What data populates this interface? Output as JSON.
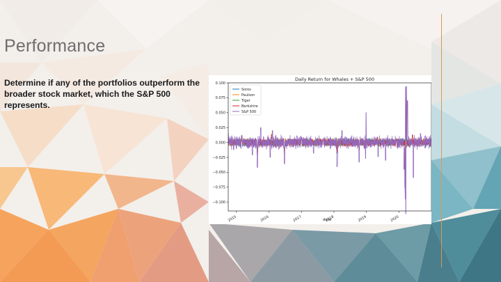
{
  "slide": {
    "title": "Performance",
    "body": "Determine if any of the portfolios outperform the broader stock market, which the S&P 500 represents."
  },
  "chart_data": {
    "type": "line",
    "title": "Daily Return for Whales + S&P 500",
    "xlabel": "date",
    "ylabel": "",
    "x_range": [
      "2014-10-01",
      "2020-12-31"
    ],
    "ylim": [
      -0.115,
      0.1
    ],
    "y_ticks": [
      0.1,
      0.075,
      0.05,
      0.025,
      0.0,
      -0.025,
      -0.05,
      -0.075,
      -0.1
    ],
    "y_tick_labels": [
      "0.100",
      "0.075",
      "0.050",
      "0.025",
      "0.000",
      "−0.025",
      "−0.050",
      "−0.075",
      "−0.100"
    ],
    "x_ticks": [
      "2015-01-01",
      "2016-01-01",
      "2017-01-01",
      "2018-01-01",
      "2019-01-01",
      "2020-01-01"
    ],
    "x_tick_labels": [
      "2015",
      "2016",
      "2017",
      "2018",
      "2019",
      "2020"
    ],
    "legend_position": "top-left",
    "grid": false,
    "series": [
      {
        "name": "Soros",
        "color": "#1f77b4",
        "x": [
          "2014-10-01",
          "2015-03-01",
          "2015-08-24",
          "2016-02-01",
          "2016-06-24",
          "2017-01-01",
          "2017-09-01",
          "2018-02-05",
          "2018-10-10",
          "2019-05-01",
          "2019-12-01",
          "2020-03-12",
          "2020-03-24",
          "2020-06-01",
          "2020-12-31"
        ],
        "values": [
          0.0,
          0.01,
          -0.02,
          0.012,
          -0.015,
          0.005,
          0.004,
          -0.018,
          -0.012,
          0.008,
          0.004,
          -0.06,
          0.07,
          0.012,
          0.005
        ]
      },
      {
        "name": "Paulson",
        "color": "#ff7f0e",
        "x": [
          "2014-10-01",
          "2015-03-01",
          "2015-08-24",
          "2016-02-01",
          "2016-06-24",
          "2017-01-01",
          "2017-09-01",
          "2018-02-05",
          "2018-10-10",
          "2019-05-01",
          "2019-12-01",
          "2020-03-12",
          "2020-03-24",
          "2020-06-01",
          "2020-12-31"
        ],
        "values": [
          0.002,
          0.012,
          -0.018,
          0.014,
          -0.02,
          0.008,
          0.003,
          -0.015,
          -0.01,
          0.006,
          0.003,
          -0.05,
          0.06,
          0.01,
          0.004
        ]
      },
      {
        "name": "Tiger",
        "color": "#2ca02c",
        "x": [
          "2014-10-01",
          "2015-03-01",
          "2015-08-24",
          "2016-02-01",
          "2016-06-24",
          "2017-01-01",
          "2017-09-01",
          "2018-02-05",
          "2018-10-10",
          "2019-05-01",
          "2019-12-01",
          "2020-03-12",
          "2020-03-24",
          "2020-06-01",
          "2020-12-31"
        ],
        "values": [
          0.001,
          0.008,
          -0.015,
          0.01,
          -0.012,
          0.006,
          0.002,
          -0.014,
          -0.009,
          0.007,
          0.003,
          -0.055,
          0.065,
          0.011,
          0.006
        ]
      },
      {
        "name": "Berkshire",
        "color": "#d62728",
        "x": [
          "2014-10-01",
          "2015-03-01",
          "2015-08-24",
          "2016-02-01",
          "2016-06-24",
          "2017-01-01",
          "2017-09-01",
          "2018-02-05",
          "2018-10-10",
          "2019-05-01",
          "2019-12-01",
          "2020-03-12",
          "2020-03-24",
          "2020-06-01",
          "2020-12-31"
        ],
        "values": [
          0.003,
          0.011,
          -0.017,
          0.013,
          -0.014,
          0.009,
          0.006,
          -0.016,
          -0.013,
          0.009,
          0.005,
          -0.065,
          0.075,
          0.013,
          0.007
        ]
      },
      {
        "name": "S&P 500",
        "color": "#9467bd",
        "x": [
          "2014-10-01",
          "2014-12-01",
          "2015-03-01",
          "2015-06-29",
          "2015-08-24",
          "2015-10-01",
          "2016-01-15",
          "2016-02-11",
          "2016-06-24",
          "2016-11-09",
          "2017-01-01",
          "2017-05-17",
          "2017-09-01",
          "2018-02-05",
          "2018-02-08",
          "2018-04-01",
          "2018-10-10",
          "2018-12-24",
          "2018-12-26",
          "2019-05-13",
          "2019-08-05",
          "2019-12-01",
          "2020-02-27",
          "2020-03-09",
          "2020-03-12",
          "2020-03-13",
          "2020-03-16",
          "2020-03-24",
          "2020-04-06",
          "2020-06-11",
          "2020-09-01",
          "2020-12-31"
        ],
        "values": [
          0.015,
          -0.012,
          0.012,
          -0.021,
          -0.042,
          0.025,
          -0.025,
          0.02,
          -0.036,
          0.011,
          0.004,
          -0.018,
          0.006,
          -0.041,
          -0.038,
          0.02,
          -0.033,
          -0.027,
          0.05,
          -0.024,
          -0.03,
          0.006,
          -0.045,
          -0.076,
          -0.095,
          0.093,
          -0.12,
          0.094,
          0.07,
          -0.059,
          0.015,
          0.006
        ]
      }
    ]
  }
}
